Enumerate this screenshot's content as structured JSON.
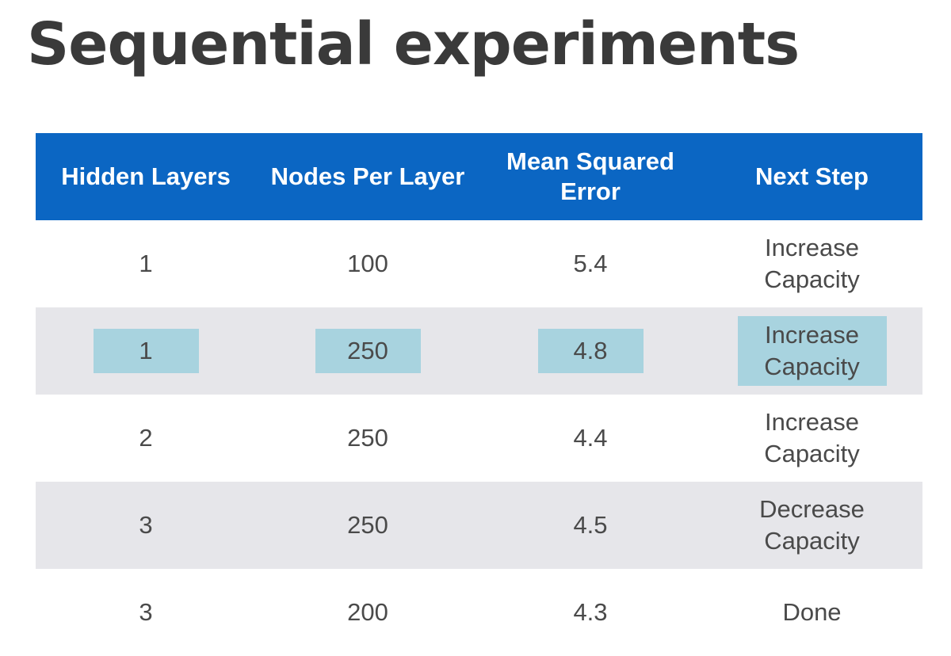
{
  "title": "Sequential experiments",
  "table": {
    "headers": [
      "Hidden Layers",
      "Nodes Per Layer",
      "Mean Squared\nError",
      "Next Step"
    ],
    "rows": [
      [
        "1",
        "100",
        "5.4",
        "Increase\nCapacity"
      ],
      [
        "1",
        "250",
        "4.8",
        "Increase\nCapacity"
      ],
      [
        "2",
        "250",
        "4.4",
        "Increase\nCapacity"
      ],
      [
        "3",
        "250",
        "4.5",
        "Decrease\nCapacity"
      ],
      [
        "3",
        "200",
        "4.3",
        "Done"
      ]
    ],
    "highlighted_row": 1
  },
  "colors": {
    "header_bg": "#0b66c3",
    "stripe_bg": "#e6e6ea",
    "highlight": "#a8d3df",
    "title_text": "#3a3a3a"
  }
}
